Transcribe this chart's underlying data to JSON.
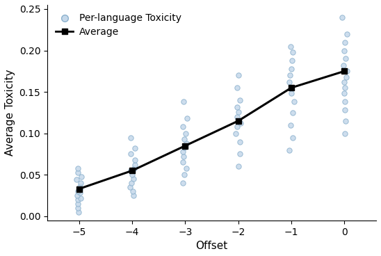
{
  "avg_x": [
    -5,
    -4,
    -3,
    -2,
    -1,
    0
  ],
  "avg_y": [
    0.033,
    0.055,
    0.085,
    0.115,
    0.155,
    0.175
  ],
  "scatter_points": {
    "-5": [
      0.005,
      0.01,
      0.015,
      0.02,
      0.022,
      0.025,
      0.028,
      0.03,
      0.033,
      0.036,
      0.04,
      0.044,
      0.048,
      0.053,
      0.058
    ],
    "-4": [
      0.025,
      0.03,
      0.035,
      0.04,
      0.045,
      0.05,
      0.055,
      0.058,
      0.062,
      0.068,
      0.075,
      0.082,
      0.095
    ],
    "-3": [
      0.04,
      0.05,
      0.058,
      0.065,
      0.072,
      0.078,
      0.083,
      0.088,
      0.093,
      0.1,
      0.108,
      0.118,
      0.138
    ],
    "-2": [
      0.06,
      0.075,
      0.09,
      0.1,
      0.108,
      0.112,
      0.115,
      0.12,
      0.126,
      0.132,
      0.14,
      0.155,
      0.17
    ],
    "-1": [
      0.08,
      0.095,
      0.11,
      0.125,
      0.138,
      0.148,
      0.155,
      0.162,
      0.17,
      0.178,
      0.188,
      0.198,
      0.205
    ],
    "0": [
      0.1,
      0.115,
      0.128,
      0.138,
      0.148,
      0.155,
      0.162,
      0.168,
      0.175,
      0.182,
      0.19,
      0.2,
      0.21,
      0.22,
      0.24
    ]
  },
  "line_color": "#000000",
  "scatter_facecolor": "#c5d8ea",
  "scatter_edgecolor": "#8ab0cc",
  "xlabel": "Offset",
  "ylabel": "Average Toxicity",
  "xlim": [
    -5.6,
    0.6
  ],
  "ylim": [
    -0.005,
    0.255
  ],
  "yticks": [
    0.0,
    0.05,
    0.1,
    0.15,
    0.2,
    0.25
  ],
  "xticks": [
    -5,
    -4,
    -3,
    -2,
    -1,
    0
  ],
  "legend_labels": [
    "Per-language Toxicity",
    "Average"
  ],
  "figsize": [
    5.48,
    3.68
  ],
  "dpi": 100
}
